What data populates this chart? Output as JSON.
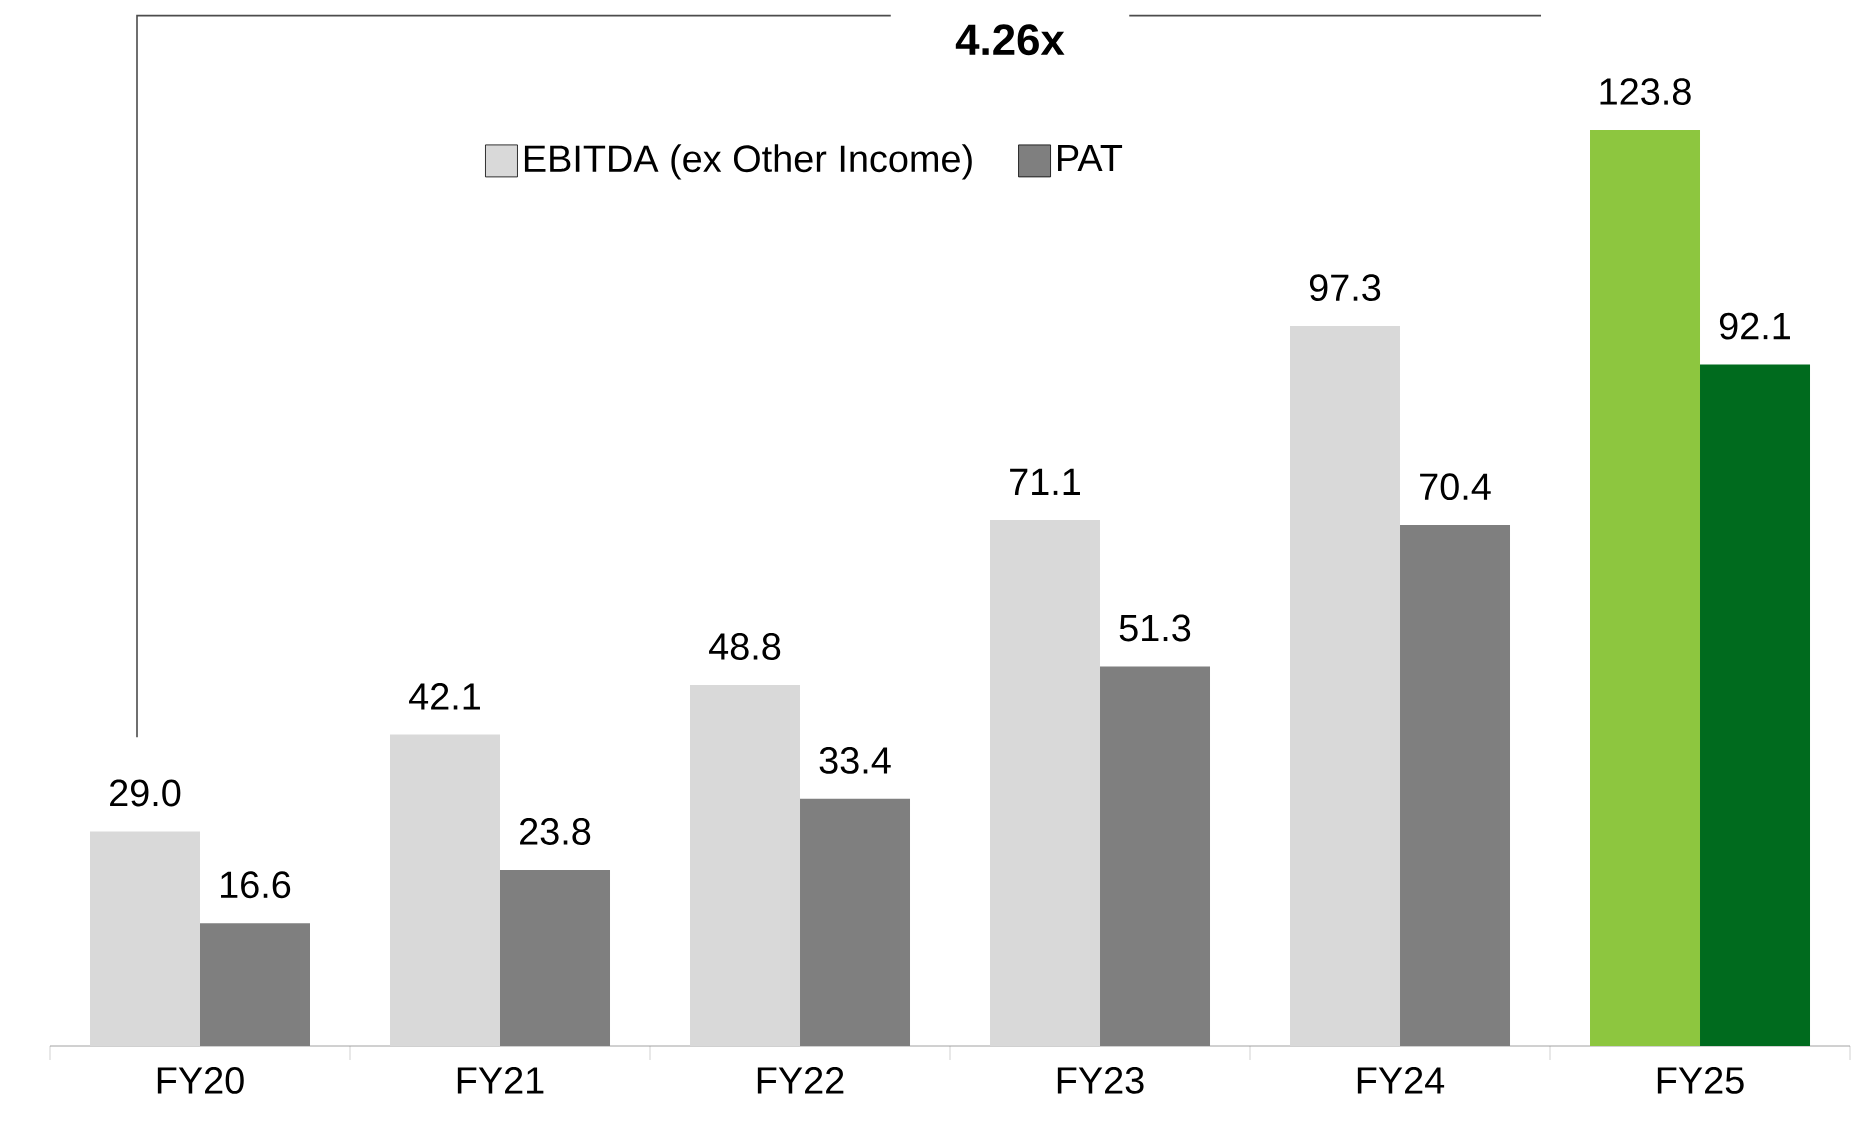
{
  "chart_data": {
    "type": "bar",
    "categories": [
      "FY20",
      "FY21",
      "FY22",
      "FY23",
      "FY24",
      "FY25"
    ],
    "series": [
      {
        "name": "EBITDA (ex Other Income)",
        "color": "#d9d9d9",
        "colors": [
          "#d9d9d9",
          "#d9d9d9",
          "#d9d9d9",
          "#d9d9d9",
          "#d9d9d9",
          "#8dc63f"
        ],
        "values": [
          29.0,
          42.1,
          48.8,
          71.1,
          97.3,
          123.8
        ],
        "value_labels": [
          "29.0",
          "42.1",
          "48.8",
          "71.1",
          "97.3",
          "123.8"
        ]
      },
      {
        "name": "PAT",
        "color": "#7f7f7f",
        "colors": [
          "#7f7f7f",
          "#7f7f7f",
          "#7f7f7f",
          "#7f7f7f",
          "#7f7f7f",
          "#006b1e"
        ],
        "values": [
          16.6,
          23.8,
          33.4,
          51.3,
          70.4,
          92.1
        ],
        "value_labels": [
          "16.6",
          "23.8",
          "33.4",
          "51.3",
          "70.4",
          "92.1"
        ]
      }
    ],
    "legend": "top",
    "annotations": [
      "4.26x"
    ]
  }
}
